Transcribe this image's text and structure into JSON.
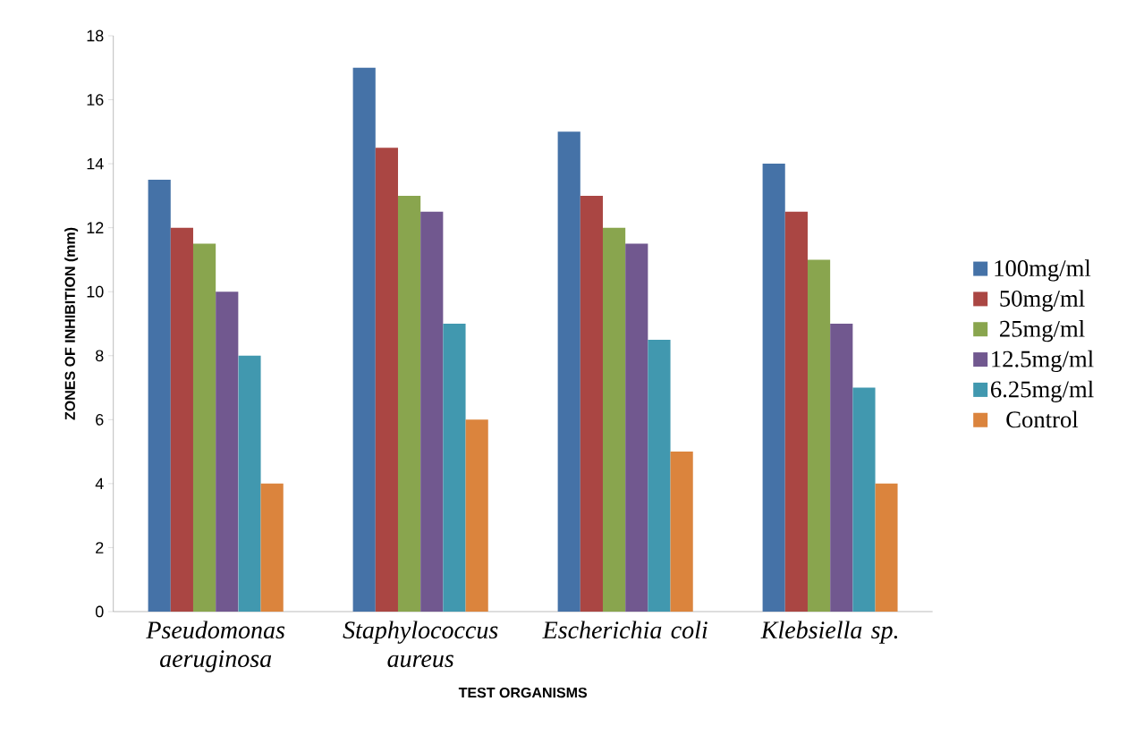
{
  "chart_data": {
    "type": "bar",
    "xlabel": "TEST ORGANISMS",
    "ylabel": "ZONES OF INHIBITION (mm)",
    "categories": [
      "Pseudomonas aeruginosa",
      "Staphylococcus aureus",
      "Escherichia coli",
      "Klebsiella sp."
    ],
    "series": [
      {
        "name": "100mg/ml",
        "color": "#4572a7",
        "values": [
          13.5,
          17,
          15,
          14
        ]
      },
      {
        "name": "50mg/ml",
        "color": "#aa4643",
        "values": [
          12,
          14.5,
          13,
          12.5
        ]
      },
      {
        "name": "25mg/ml",
        "color": "#89a54e",
        "values": [
          11.5,
          13,
          12,
          11
        ]
      },
      {
        "name": "12.5mg/ml",
        "color": "#71588f",
        "values": [
          10,
          12.5,
          11.5,
          9
        ]
      },
      {
        "name": "6.25mg/ml",
        "color": "#4198af",
        "values": [
          8,
          9,
          8.5,
          7
        ]
      },
      {
        "name": "Control",
        "color": "#db843d",
        "values": [
          4,
          6,
          5,
          4
        ]
      }
    ],
    "ylim": [
      0,
      18
    ],
    "yticks": [
      0,
      2,
      4,
      6,
      8,
      10,
      12,
      14,
      16,
      18
    ],
    "legend": "right"
  }
}
